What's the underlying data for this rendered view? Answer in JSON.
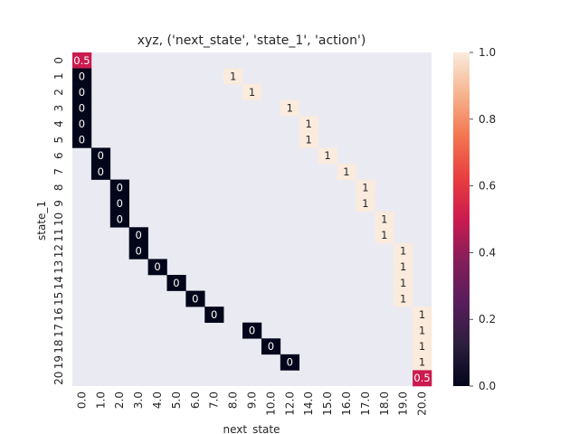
{
  "chart_data": {
    "type": "heatmap",
    "title": "xyz, ('next_state', 'state_1', 'action')",
    "xlabel": "next_state",
    "ylabel": "state_1",
    "x_ticks": [
      "0.0",
      "1.0",
      "2.0",
      "3.0",
      "4.0",
      "5.0",
      "6.0",
      "7.0",
      "8.0",
      "9.0",
      "10.0",
      "12.0",
      "14.0",
      "15.0",
      "16.0",
      "17.0",
      "18.0",
      "19.0",
      "20.0"
    ],
    "y_ticks": [
      "0",
      "1",
      "2",
      "3",
      "4",
      "5",
      "6",
      "7",
      "8",
      "9",
      "10",
      "11",
      "12",
      "13",
      "14",
      "15",
      "16",
      "17",
      "18",
      "19",
      "20"
    ],
    "cells": [
      {
        "row": 0,
        "col": 0,
        "value": 0.5,
        "label": "0.5"
      },
      {
        "row": 1,
        "col": 0,
        "value": 0,
        "label": "0"
      },
      {
        "row": 2,
        "col": 0,
        "value": 0,
        "label": "0"
      },
      {
        "row": 3,
        "col": 0,
        "value": 0,
        "label": "0"
      },
      {
        "row": 4,
        "col": 0,
        "value": 0,
        "label": "0"
      },
      {
        "row": 5,
        "col": 0,
        "value": 0,
        "label": "0"
      },
      {
        "row": 6,
        "col": 1,
        "value": 0,
        "label": "0"
      },
      {
        "row": 7,
        "col": 1,
        "value": 0,
        "label": "0"
      },
      {
        "row": 8,
        "col": 2,
        "value": 0,
        "label": "0"
      },
      {
        "row": 9,
        "col": 2,
        "value": 0,
        "label": "0"
      },
      {
        "row": 10,
        "col": 2,
        "value": 0,
        "label": "0"
      },
      {
        "row": 11,
        "col": 3,
        "value": 0,
        "label": "0"
      },
      {
        "row": 12,
        "col": 3,
        "value": 0,
        "label": "0"
      },
      {
        "row": 13,
        "col": 4,
        "value": 0,
        "label": "0"
      },
      {
        "row": 14,
        "col": 5,
        "value": 0,
        "label": "0"
      },
      {
        "row": 15,
        "col": 6,
        "value": 0,
        "label": "0"
      },
      {
        "row": 16,
        "col": 7,
        "value": 0,
        "label": "0"
      },
      {
        "row": 17,
        "col": 9,
        "value": 0,
        "label": "0"
      },
      {
        "row": 18,
        "col": 10,
        "value": 0,
        "label": "0"
      },
      {
        "row": 19,
        "col": 11,
        "value": 0,
        "label": "0"
      },
      {
        "row": 1,
        "col": 8,
        "value": 1,
        "label": "1"
      },
      {
        "row": 2,
        "col": 9,
        "value": 1,
        "label": "1"
      },
      {
        "row": 3,
        "col": 11,
        "value": 1,
        "label": "1"
      },
      {
        "row": 4,
        "col": 12,
        "value": 1,
        "label": "1"
      },
      {
        "row": 5,
        "col": 12,
        "value": 1,
        "label": "1"
      },
      {
        "row": 6,
        "col": 13,
        "value": 1,
        "label": "1"
      },
      {
        "row": 7,
        "col": 14,
        "value": 1,
        "label": "1"
      },
      {
        "row": 8,
        "col": 15,
        "value": 1,
        "label": "1"
      },
      {
        "row": 9,
        "col": 15,
        "value": 1,
        "label": "1"
      },
      {
        "row": 10,
        "col": 16,
        "value": 1,
        "label": "1"
      },
      {
        "row": 11,
        "col": 16,
        "value": 1,
        "label": "1"
      },
      {
        "row": 12,
        "col": 17,
        "value": 1,
        "label": "1"
      },
      {
        "row": 13,
        "col": 17,
        "value": 1,
        "label": "1"
      },
      {
        "row": 14,
        "col": 17,
        "value": 1,
        "label": "1"
      },
      {
        "row": 15,
        "col": 17,
        "value": 1,
        "label": "1"
      },
      {
        "row": 16,
        "col": 18,
        "value": 1,
        "label": "1"
      },
      {
        "row": 17,
        "col": 18,
        "value": 1,
        "label": "1"
      },
      {
        "row": 18,
        "col": 18,
        "value": 1,
        "label": "1"
      },
      {
        "row": 19,
        "col": 18,
        "value": 1,
        "label": "1"
      },
      {
        "row": 20,
        "col": 18,
        "value": 0.5,
        "label": "0.5"
      }
    ],
    "colorbar": {
      "min": 0.0,
      "max": 1.0,
      "ticks": [
        "0.0",
        "0.2",
        "0.4",
        "0.6",
        "0.8",
        "1.0"
      ],
      "colormap": "rocket"
    },
    "colors": {
      "low": "#03051a",
      "mid": "#cb1b4f",
      "high": "#faebdd",
      "empty_background": "#eaeaf2"
    },
    "grid": false,
    "legend": "colorbar-right"
  }
}
